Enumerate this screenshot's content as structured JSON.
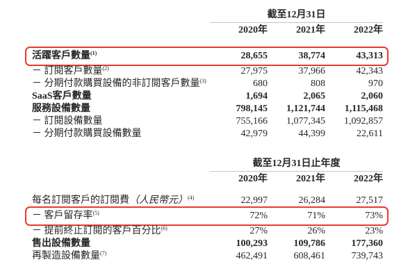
{
  "styles": {
    "background": "#ffffff",
    "text_color": "#262626",
    "highlight_border": "#e8392e",
    "rule_color": "#c4c4cf"
  },
  "tables": [
    {
      "period_header": "截至12月31日",
      "years": [
        "2020年",
        "2021年",
        "2022年"
      ],
      "rows": [
        {
          "label": "活躍客戶數量",
          "sup": "(1)",
          "bold": true,
          "highlighted": true,
          "values": [
            "28,655",
            "38,774",
            "43,313"
          ]
        },
        {
          "label": "－ 訂閱客戶數量",
          "sup": "(2)",
          "bold": false,
          "highlighted": false,
          "values": [
            "27,975",
            "37,966",
            "42,343"
          ]
        },
        {
          "label": "－ 分期付款購買設備的非訂閱客戶數量",
          "sup": "(3)",
          "bold": false,
          "highlighted": false,
          "values": [
            "680",
            "808",
            "970"
          ]
        },
        {
          "label": "SaaS客戶數量",
          "sup": "",
          "bold": true,
          "highlighted": false,
          "values": [
            "1,694",
            "2,065",
            "2,060"
          ]
        },
        {
          "label": "服務設備數量",
          "sup": "",
          "bold": true,
          "highlighted": false,
          "values": [
            "798,145",
            "1,121,744",
            "1,115,468"
          ]
        },
        {
          "label": "－ 訂閱設備數量",
          "sup": "",
          "bold": false,
          "highlighted": false,
          "values": [
            "755,166",
            "1,077,345",
            "1,092,857"
          ]
        },
        {
          "label": "－ 分期付款購買設備數量",
          "sup": "",
          "bold": false,
          "highlighted": false,
          "values": [
            "42,979",
            "44,399",
            "22,611"
          ]
        }
      ]
    },
    {
      "period_header": "截至12月31日止年度",
      "years": [
        "2020年",
        "2021年",
        "2022年"
      ],
      "rows": [
        {
          "label": "每名訂閱客戶的訂閱費",
          "label_italic": "（人民幣元）",
          "sup": "(4)",
          "bold": false,
          "highlighted": false,
          "values": [
            "22,997",
            "26,284",
            "27,517"
          ]
        },
        {
          "label": "－ 客戶留存率",
          "sup": "(5)",
          "bold": false,
          "highlighted": true,
          "values": [
            "72%",
            "71%",
            "73%"
          ]
        },
        {
          "label": "－ 提前終止訂閱的客戶百分比",
          "sup": "(6)",
          "bold": false,
          "highlighted": false,
          "values": [
            "27%",
            "26%",
            "23%"
          ]
        },
        {
          "label": "售出設備數量",
          "sup": "",
          "bold": true,
          "highlighted": false,
          "values": [
            "100,293",
            "109,786",
            "177,360"
          ]
        },
        {
          "label": "再製造設備數量",
          "sup": "(7)",
          "bold": false,
          "highlighted": false,
          "values": [
            "462,491",
            "608,461",
            "739,743"
          ]
        }
      ]
    }
  ]
}
